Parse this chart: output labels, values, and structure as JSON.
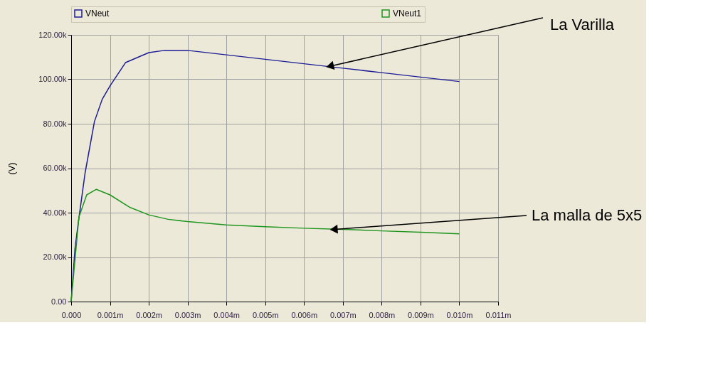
{
  "chart_data": {
    "type": "line",
    "ylabel": "(V)",
    "xlim": [
      0,
      0.011
    ],
    "ylim": [
      0,
      120000
    ],
    "xticks": [
      {
        "value": 0,
        "label": "0.000"
      },
      {
        "value": 0.001,
        "label": "0.001m"
      },
      {
        "value": 0.002,
        "label": "0.002m"
      },
      {
        "value": 0.003,
        "label": "0.003m"
      },
      {
        "value": 0.004,
        "label": "0.004m"
      },
      {
        "value": 0.005,
        "label": "0.005m"
      },
      {
        "value": 0.006,
        "label": "0.006m"
      },
      {
        "value": 0.007,
        "label": "0.007m"
      },
      {
        "value": 0.008,
        "label": "0.008m"
      },
      {
        "value": 0.009,
        "label": "0.009m"
      },
      {
        "value": 0.01,
        "label": "0.010m"
      },
      {
        "value": 0.011,
        "label": "0.011m"
      }
    ],
    "yticks": [
      {
        "value": 0,
        "label": "0.00"
      },
      {
        "value": 20000,
        "label": "20.00k"
      },
      {
        "value": 40000,
        "label": "40.00k"
      },
      {
        "value": 60000,
        "label": "60.00k"
      },
      {
        "value": 80000,
        "label": "80.00k"
      },
      {
        "value": 100000,
        "label": "100.00k"
      },
      {
        "value": 120000,
        "label": "120.00k"
      }
    ],
    "grid": true,
    "legend": "top",
    "line_style": "solid",
    "marker": "none",
    "series": [
      {
        "name": "VNeut",
        "color": "#1c1c96",
        "x": [
          0,
          0.0001,
          0.00018,
          0.00036,
          0.0006,
          0.0008,
          0.001,
          0.0014,
          0.002,
          0.0024,
          0.003,
          0.004,
          0.005,
          0.006,
          0.007,
          0.008,
          0.009,
          0.01
        ],
        "values": [
          0,
          24000,
          35000,
          58000,
          81000,
          91000,
          97000,
          107500,
          112000,
          113000,
          113000,
          111000,
          109000,
          107000,
          105000,
          103000,
          101000,
          99000
        ]
      },
      {
        "name": "VNeut1",
        "color": "#1e961e",
        "x": [
          0,
          0.0001,
          0.0002,
          0.0004,
          0.00065,
          0.001,
          0.0015,
          0.002,
          0.0025,
          0.003,
          0.004,
          0.005,
          0.006,
          0.007,
          0.008,
          0.009,
          0.01
        ],
        "values": [
          0,
          19000,
          38000,
          48000,
          50500,
          48000,
          42500,
          39000,
          37000,
          36000,
          34500,
          33700,
          33000,
          32500,
          31800,
          31200,
          30500
        ]
      }
    ],
    "annotations": [
      {
        "text": "La Varilla",
        "x": 0.0067,
        "y": 106000
      },
      {
        "text": "La malla de 5x5",
        "x": 0.0068,
        "y": 32500
      }
    ]
  }
}
